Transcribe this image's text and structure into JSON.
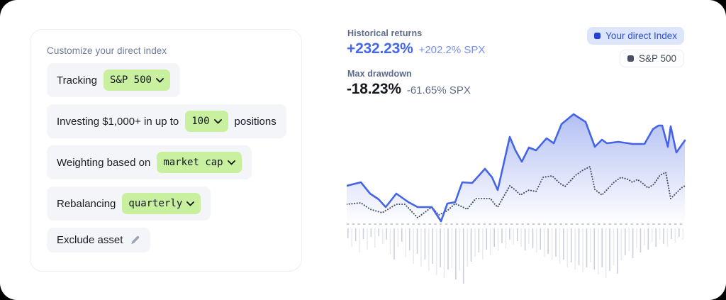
{
  "panel": {
    "title": "Customize your direct index",
    "rows": [
      {
        "prefix": "Tracking",
        "pill": "S&P 500",
        "suffix": "",
        "icon": "chevron"
      },
      {
        "prefix": "Investing $1,000+ in up to",
        "pill": "100",
        "suffix": "positions",
        "icon": "chevron"
      },
      {
        "prefix": "Weighting based on",
        "pill": "market cap",
        "suffix": "",
        "icon": "chevron"
      },
      {
        "prefix": "Rebalancing",
        "pill": "quarterly",
        "suffix": "",
        "icon": "chevron"
      },
      {
        "prefix": "Exclude asset",
        "pill": null,
        "suffix": "",
        "icon": "pencil"
      }
    ]
  },
  "stats": {
    "historical_label": "Historical returns",
    "historical_value": "+232.23%",
    "historical_benchmark": "+202.2% SPX",
    "drawdown_label": "Max drawdown",
    "drawdown_value": "-18.23%",
    "drawdown_benchmark": "-61.65% SPX"
  },
  "legend": [
    {
      "label": "Your direct Index",
      "marker_color": "#2443d6",
      "style": "primary"
    },
    {
      "label": "S&P 500",
      "marker_color": "#47506a",
      "style": "secondary"
    }
  ],
  "colors": {
    "accent_blue": "#4565e6",
    "area_fill": "#7c92ea",
    "benchmark_dotted": "#46506a",
    "baseline_dash": "#b6bcc9",
    "bar_dark": "#cbd0dc",
    "bar_light": "#e9ebf1",
    "pill_green": "#c9f09e",
    "row_bg": "#f4f5f8"
  },
  "chart_data": {
    "type": "line",
    "title": "Historical returns: direct index vs S&P 500 (axes unlabeled, stylized)",
    "x_range": [
      0,
      477
    ],
    "y_range": [
      0,
      270
    ],
    "baseline_y": 166,
    "bar_top_y": 172,
    "grid": false,
    "legend_position": "top-right",
    "series": [
      {
        "name": "Your direct Index",
        "style": "solid-area",
        "color": "#4565e6",
        "points": [
          [
            0,
            112
          ],
          [
            20,
            107
          ],
          [
            33,
            123
          ],
          [
            45,
            131
          ],
          [
            55,
            142
          ],
          [
            70,
            123
          ],
          [
            87,
            135
          ],
          [
            100,
            142
          ],
          [
            120,
            142
          ],
          [
            133,
            162
          ],
          [
            142,
            137
          ],
          [
            153,
            135
          ],
          [
            163,
            107
          ],
          [
            177,
            108
          ],
          [
            195,
            88
          ],
          [
            205,
            100
          ],
          [
            213,
            118
          ],
          [
            230,
            43
          ],
          [
            238,
            62
          ],
          [
            247,
            78
          ],
          [
            257,
            58
          ],
          [
            267,
            62
          ],
          [
            282,
            45
          ],
          [
            292,
            52
          ],
          [
            303,
            25
          ],
          [
            320,
            11
          ],
          [
            337,
            22
          ],
          [
            350,
            57
          ],
          [
            360,
            47
          ],
          [
            367,
            52
          ],
          [
            383,
            50
          ],
          [
            397,
            52
          ],
          [
            403,
            53
          ],
          [
            410,
            53
          ],
          [
            420,
            53
          ],
          [
            432,
            32
          ],
          [
            440,
            27
          ],
          [
            445,
            27
          ],
          [
            453,
            57
          ],
          [
            457,
            28
          ],
          [
            465,
            65
          ],
          [
            477,
            48
          ]
        ]
      },
      {
        "name": "S&P 500",
        "style": "dotted",
        "color": "#46506a",
        "points": [
          [
            0,
            138
          ],
          [
            20,
            136
          ],
          [
            33,
            145
          ],
          [
            50,
            150
          ],
          [
            70,
            138
          ],
          [
            82,
            138
          ],
          [
            100,
            157
          ],
          [
            120,
            142
          ],
          [
            130,
            153
          ],
          [
            142,
            147
          ],
          [
            153,
            137
          ],
          [
            170,
            145
          ],
          [
            182,
            130
          ],
          [
            203,
            130
          ],
          [
            208,
            137
          ],
          [
            213,
            142
          ],
          [
            230,
            112
          ],
          [
            238,
            118
          ],
          [
            245,
            125
          ],
          [
            257,
            118
          ],
          [
            267,
            120
          ],
          [
            277,
            100
          ],
          [
            290,
            98
          ],
          [
            300,
            108
          ],
          [
            308,
            113
          ],
          [
            323,
            97
          ],
          [
            333,
            90
          ],
          [
            343,
            85
          ],
          [
            350,
            117
          ],
          [
            360,
            125
          ],
          [
            377,
            107
          ],
          [
            387,
            100
          ],
          [
            397,
            103
          ],
          [
            403,
            107
          ],
          [
            410,
            103
          ],
          [
            417,
            108
          ],
          [
            425,
            115
          ],
          [
            433,
            110
          ],
          [
            442,
            97
          ],
          [
            450,
            93
          ],
          [
            457,
            130
          ],
          [
            462,
            125
          ],
          [
            472,
            115
          ],
          [
            477,
            112
          ]
        ]
      }
    ],
    "bars": {
      "width": 1.6,
      "spacing": 5.43,
      "colors": [
        "#cbd0dc",
        "#e9ebf1"
      ],
      "depths": [
        14,
        26,
        18,
        34,
        15,
        30,
        12,
        27,
        11,
        22,
        16,
        36,
        44,
        26,
        19,
        40,
        31,
        50,
        36,
        54,
        44,
        60,
        50,
        66,
        55,
        70,
        58,
        56,
        72,
        60,
        78,
        54,
        47,
        40,
        34,
        44,
        30,
        38,
        26,
        32,
        21,
        28,
        16,
        23,
        18,
        26,
        31,
        22,
        28,
        34,
        30,
        40,
        36,
        44,
        40,
        50,
        44,
        55,
        48,
        58,
        52,
        62,
        55,
        48,
        58,
        65,
        55,
        70,
        60,
        52,
        64,
        45,
        38,
        32,
        42,
        28,
        34,
        24,
        30,
        20,
        26,
        16,
        22,
        26,
        15,
        20,
        12,
        16
      ]
    }
  }
}
